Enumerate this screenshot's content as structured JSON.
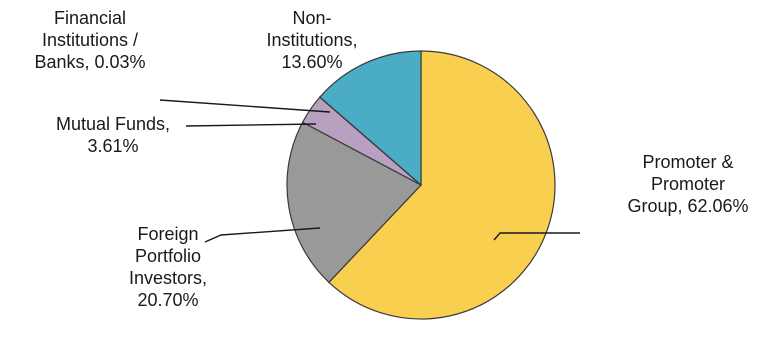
{
  "chart_data": {
    "type": "pie",
    "title": "",
    "legend": "none",
    "slices": [
      {
        "name": "Promoter & Promoter Group",
        "value": 62.06,
        "label_lines": [
          "Promoter &",
          "Promoter",
          "Group, 62.06%"
        ],
        "color": "#F9CF4F"
      },
      {
        "name": "Foreign Portfolio Investors",
        "value": 20.7,
        "label_lines": [
          "Foreign",
          "Portfolio",
          "Investors,",
          "20.70%"
        ],
        "color": "#999999"
      },
      {
        "name": "Mutual Funds",
        "value": 3.61,
        "label_lines": [
          "Mutual Funds,",
          "3.61%"
        ],
        "color": "#B8A0C0"
      },
      {
        "name": "Financial Institutions / Banks",
        "value": 0.03,
        "label_lines": [
          "Financial",
          "Institutions /",
          "Banks, 0.03%"
        ],
        "color": "#C0504D"
      },
      {
        "name": "Non-Institutions",
        "value": 13.6,
        "label_lines": [
          "Non-",
          "Institutions,",
          "13.60%"
        ],
        "color": "#4BACC6"
      }
    ]
  }
}
